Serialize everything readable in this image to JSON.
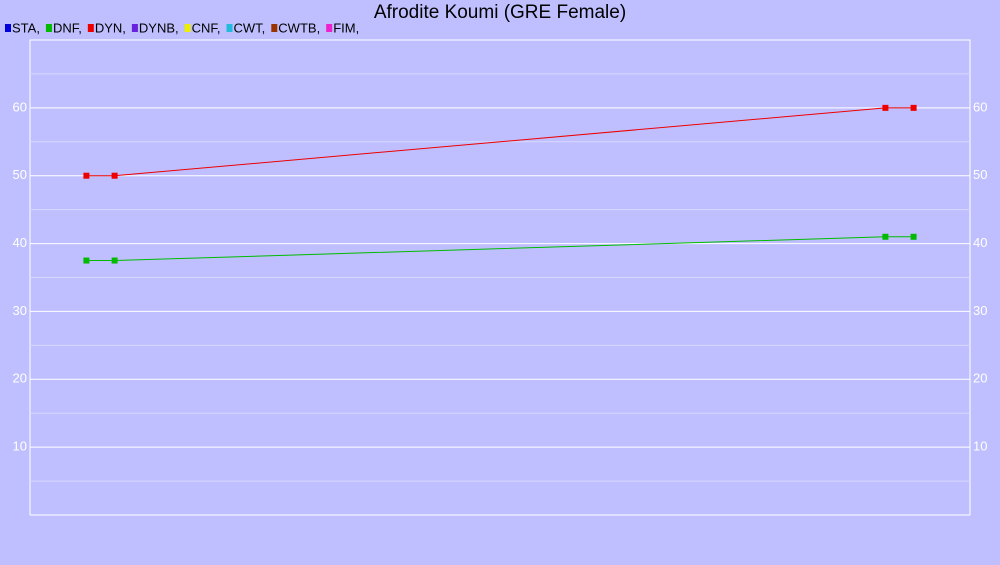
{
  "chart_data": {
    "type": "line",
    "title": "Afrodite Koumi (GRE Female)",
    "x": [
      6,
      9,
      91,
      94
    ],
    "xlim": [
      0,
      100
    ],
    "ylim": [
      0,
      70
    ],
    "yticks": [
      10,
      20,
      30,
      40,
      50,
      60
    ],
    "yminor": [
      5,
      15,
      25,
      35,
      45,
      55,
      65
    ],
    "grid": true,
    "legend": "top-left",
    "series": [
      {
        "name": "STA,",
        "color": "#0000dd",
        "values": [
          null,
          null,
          null,
          null
        ]
      },
      {
        "name": "DNF,",
        "color": "#00bb00",
        "values": [
          37.5,
          37.5,
          41,
          41
        ]
      },
      {
        "name": "DYN,",
        "color": "#ee0000",
        "values": [
          50,
          50,
          60,
          60
        ]
      },
      {
        "name": "DYNB,",
        "color": "#6622dd",
        "values": [
          null,
          null,
          null,
          null
        ]
      },
      {
        "name": "CNF,",
        "color": "#eeee00",
        "values": [
          null,
          null,
          null,
          null
        ]
      },
      {
        "name": "CWT,",
        "color": "#22bbdd",
        "values": [
          null,
          null,
          null,
          null
        ]
      },
      {
        "name": "CWTB,",
        "color": "#993300",
        "values": [
          null,
          null,
          null,
          null
        ]
      },
      {
        "name": "FIM,",
        "color": "#ee22cc",
        "values": [
          null,
          null,
          null,
          null
        ]
      }
    ]
  }
}
